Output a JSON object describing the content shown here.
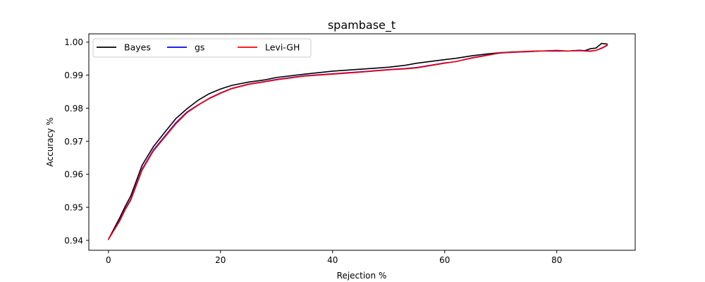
{
  "chart_data": {
    "type": "line",
    "title": "spambase_t",
    "xlabel": "Rejection %",
    "ylabel": "Accuracy %",
    "xlim": [
      -3.5,
      94
    ],
    "ylim": [
      0.937,
      1.0025
    ],
    "xticks": [
      0,
      20,
      40,
      60,
      80
    ],
    "yticks": [
      0.94,
      0.95,
      0.96,
      0.97,
      0.98,
      0.99,
      1.0
    ],
    "ytick_labels": [
      "0.94",
      "0.95",
      "0.96",
      "0.97",
      "0.98",
      "0.99",
      "1.00"
    ],
    "grid": false,
    "legend_position": "top-left",
    "x": [
      0,
      2,
      3,
      4,
      6,
      8,
      10,
      12,
      14,
      16,
      18,
      20,
      22,
      25,
      28,
      30,
      35,
      40,
      45,
      50,
      53,
      55,
      60,
      62,
      65,
      68,
      70,
      72,
      75,
      77,
      80,
      82,
      84,
      85,
      86,
      87,
      88,
      89
    ],
    "series": [
      {
        "name": "Bayes",
        "color": "#000000",
        "values": [
          0.9403,
          0.9468,
          0.9503,
          0.9535,
          0.9627,
          0.9683,
          0.9726,
          0.9768,
          0.9798,
          0.9824,
          0.9844,
          0.9858,
          0.9869,
          0.9879,
          0.9886,
          0.9893,
          0.9903,
          0.9912,
          0.9918,
          0.9924,
          0.993,
          0.9936,
          0.9947,
          0.9951,
          0.9959,
          0.9965,
          0.9968,
          0.997,
          0.9972,
          0.9973,
          0.9973,
          0.9973,
          0.9975,
          0.9974,
          0.998,
          0.9982,
          0.9996,
          0.9994
        ]
      },
      {
        "name": "gs",
        "color": "#0000ff",
        "values": [
          0.9403,
          0.946,
          0.9495,
          0.9525,
          0.9615,
          0.9673,
          0.9714,
          0.9755,
          0.9788,
          0.981,
          0.983,
          0.9846,
          0.986,
          0.9873,
          0.9881,
          0.9887,
          0.9898,
          0.9904,
          0.991,
          0.9917,
          0.992,
          0.9923,
          0.9937,
          0.9941,
          0.9953,
          0.9962,
          0.9967,
          0.9969,
          0.9971,
          0.9973,
          0.9974,
          0.9973,
          0.9975,
          0.9974,
          0.9973,
          0.9975,
          0.9981,
          0.999
        ]
      },
      {
        "name": "Levi-GH",
        "color": "#ff0000",
        "values": [
          0.9403,
          0.9458,
          0.9493,
          0.9522,
          0.9612,
          0.967,
          0.9711,
          0.9752,
          0.9786,
          0.9809,
          0.9829,
          0.9845,
          0.9859,
          0.9872,
          0.988,
          0.9886,
          0.9897,
          0.9903,
          0.9909,
          0.9916,
          0.9919,
          0.9922,
          0.9936,
          0.9941,
          0.9952,
          0.9961,
          0.9968,
          0.9969,
          0.9972,
          0.9973,
          0.9975,
          0.9973,
          0.9974,
          0.9973,
          0.9972,
          0.9975,
          0.9982,
          0.9991
        ]
      }
    ]
  }
}
